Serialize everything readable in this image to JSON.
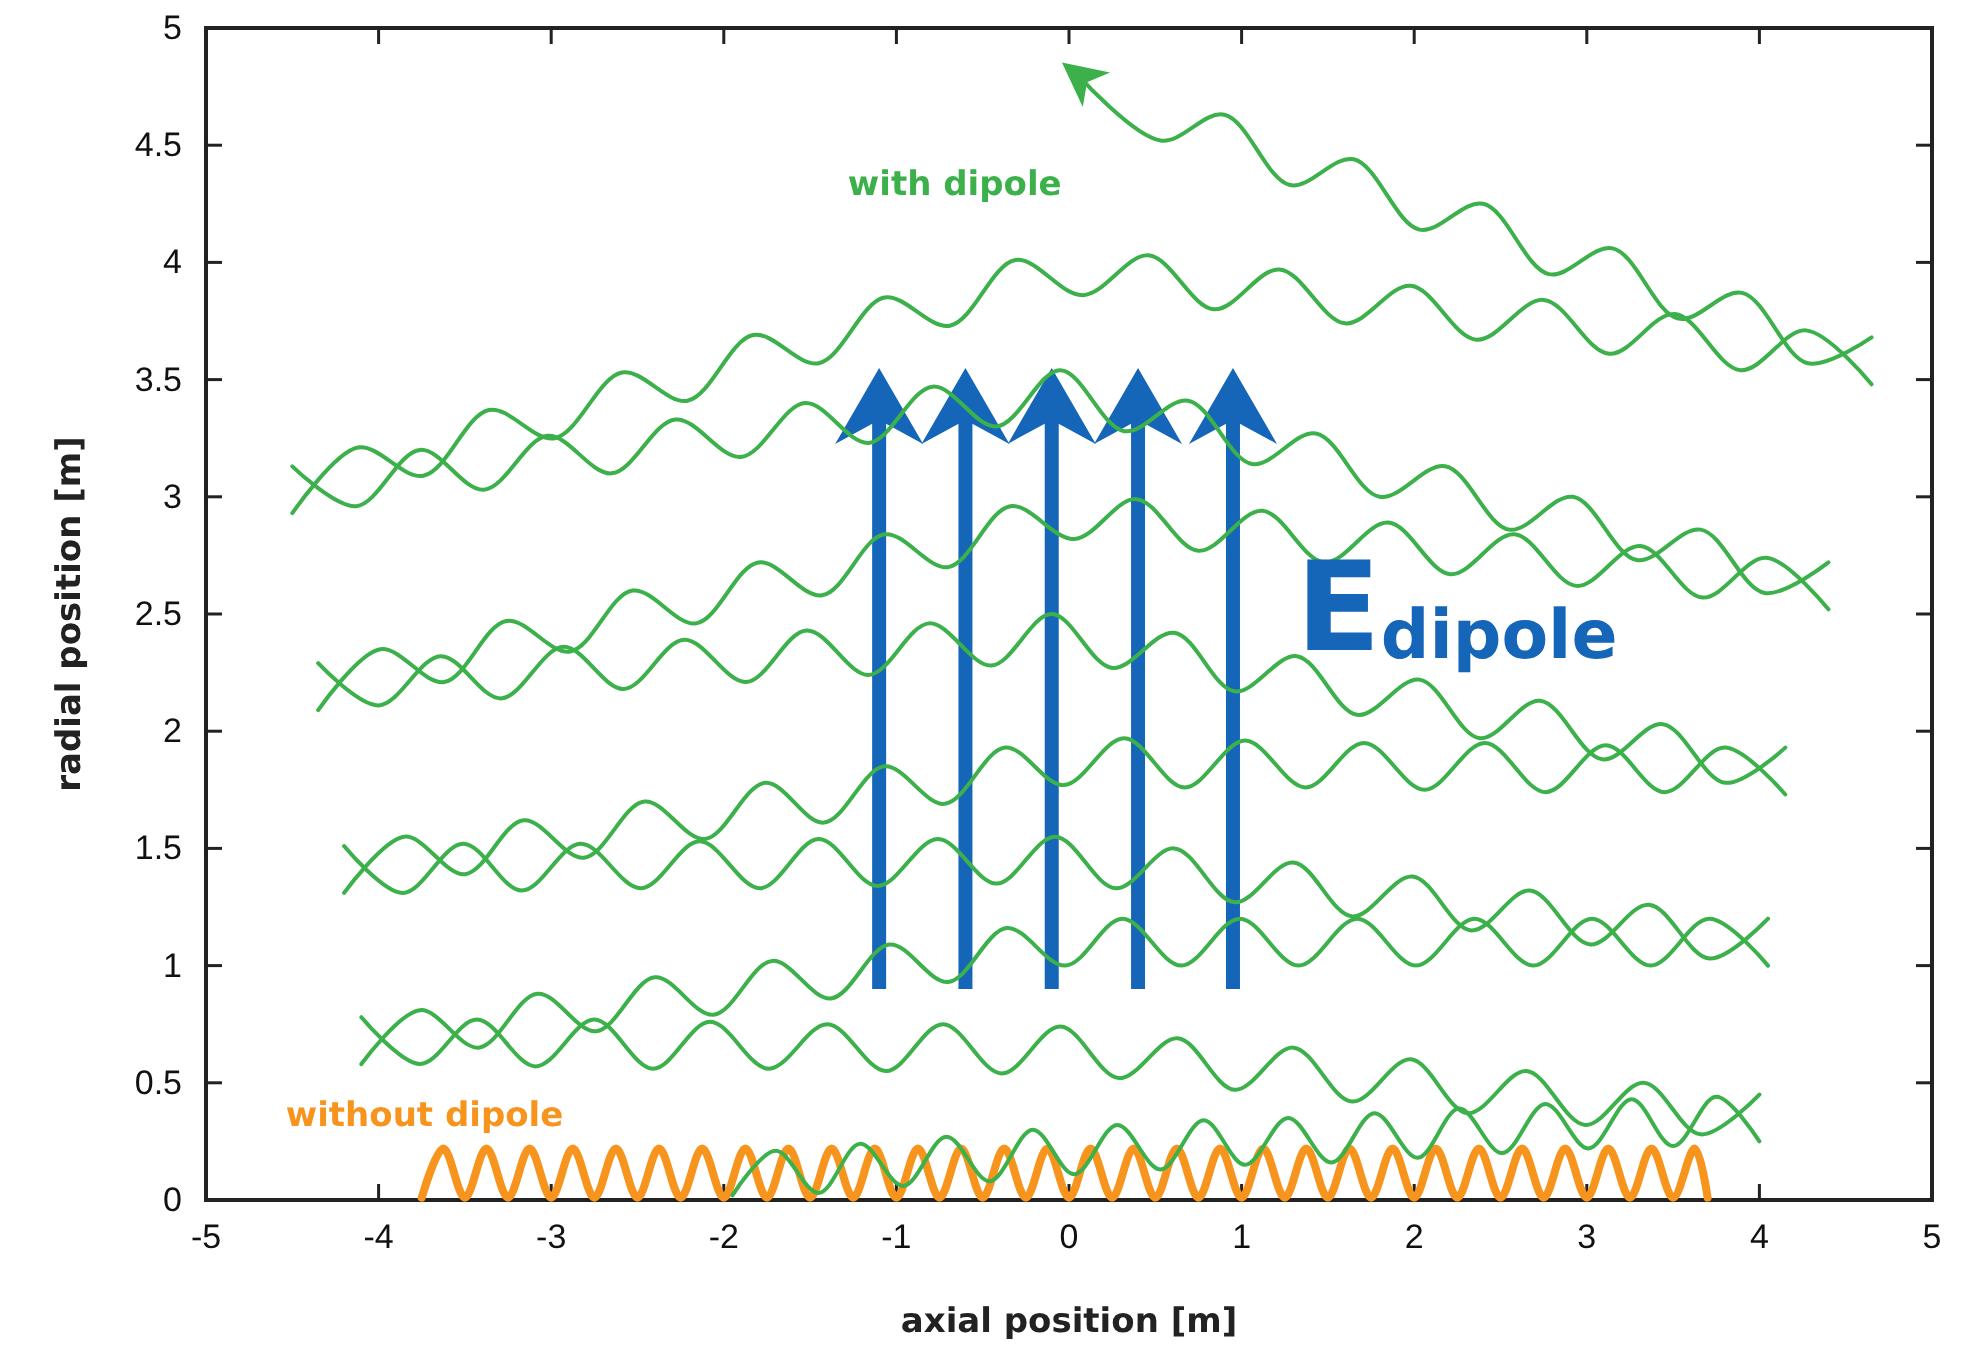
{
  "chart_data": {
    "type": "line",
    "xlabel": "axial position [m]",
    "ylabel": "radial position [m]",
    "xlim": [
      -5,
      5
    ],
    "ylim": [
      0,
      5
    ],
    "xticks": [
      -5,
      -4,
      -3,
      -2,
      -1,
      0,
      1,
      2,
      3,
      4,
      5
    ],
    "yticks": [
      0,
      0.5,
      1,
      1.5,
      2,
      2.5,
      3,
      3.5,
      4,
      4.5,
      5
    ],
    "annotations": [
      "E$_{dipole}$"
    ],
    "series": [
      {
        "name": "without dipole",
        "color": "#f7941d",
        "x": [
          -3.75,
          -3.625,
          -3.5,
          -3.375,
          -3.25,
          -3.125,
          -3,
          -2.875,
          -2.75,
          -2.625,
          -2.5,
          -2.375,
          -2.25,
          -2.125,
          -2,
          -1.875,
          -1.75,
          -1.625,
          -1.5,
          -1.375,
          -1.25,
          -1.125,
          -1,
          -0.875,
          -0.75,
          -0.625,
          -0.5,
          -0.375,
          -0.25,
          -0.125,
          0,
          0.125,
          0.25,
          0.375,
          0.5,
          0.625,
          0.75,
          0.875,
          1,
          1.125,
          1.25,
          1.375,
          1.5,
          1.625,
          1.75,
          1.875,
          2,
          2.125,
          2.25,
          2.375,
          2.5,
          2.625,
          2.75,
          2.875,
          3,
          3.125,
          3.25,
          3.375,
          3.5,
          3.625,
          3.7
        ],
        "values": [
          0.01,
          0.22,
          0.01,
          0.22,
          0.01,
          0.22,
          0.01,
          0.22,
          0.01,
          0.22,
          0.01,
          0.22,
          0.01,
          0.22,
          0.01,
          0.22,
          0.01,
          0.22,
          0.01,
          0.22,
          0.01,
          0.22,
          0.01,
          0.22,
          0.01,
          0.22,
          0.01,
          0.22,
          0.01,
          0.22,
          0.01,
          0.22,
          0.01,
          0.22,
          0.01,
          0.22,
          0.01,
          0.22,
          0.01,
          0.22,
          0.01,
          0.22,
          0.01,
          0.22,
          0.01,
          0.22,
          0.01,
          0.22,
          0.01,
          0.22,
          0.01,
          0.22,
          0.01,
          0.22,
          0.01,
          0.22,
          0.01,
          0.22,
          0.01,
          0.22,
          0.01
        ]
      },
      {
        "color": "#3cb04a",
        "x": [
          -1.95,
          -1.7,
          -1.45,
          -1.21,
          -0.96,
          -0.71,
          -0.46,
          -0.21,
          0.03,
          0.28,
          0.53,
          0.78,
          1.02,
          1.27,
          1.52,
          1.77,
          2.02,
          2.26,
          2.51,
          2.76,
          3.01,
          3.26,
          3.5,
          3.75,
          4.0
        ],
        "values": [
          0.02,
          0.21,
          0.03,
          0.24,
          0.06,
          0.27,
          0.08,
          0.3,
          0.11,
          0.32,
          0.13,
          0.34,
          0.15,
          0.35,
          0.16,
          0.37,
          0.18,
          0.39,
          0.2,
          0.41,
          0.22,
          0.43,
          0.23,
          0.44,
          0.25
        ]
      },
      {
        "color": "#3cb04a",
        "x": [
          4.0,
          3.66,
          3.33,
          2.99,
          2.65,
          2.31,
          1.98,
          1.64,
          1.3,
          0.96,
          0.63,
          0.29,
          -0.05,
          -0.39,
          -0.73,
          -1.06,
          -1.4,
          -1.74,
          -2.08,
          -2.41,
          -2.75,
          -3.09,
          -3.43,
          -3.76,
          -4.1
        ],
        "values": [
          0.45,
          0.28,
          0.5,
          0.32,
          0.55,
          0.37,
          0.6,
          0.42,
          0.65,
          0.47,
          0.69,
          0.52,
          0.74,
          0.54,
          0.75,
          0.55,
          0.75,
          0.56,
          0.76,
          0.56,
          0.77,
          0.57,
          0.77,
          0.58,
          0.78
        ]
      },
      {
        "color": "#3cb04a",
        "x": [
          -4.1,
          -3.76,
          -3.42,
          -3.08,
          -2.74,
          -2.4,
          -2.06,
          -1.72,
          -1.38,
          -1.04,
          -0.7,
          -0.36,
          -0.02,
          0.31,
          0.65,
          0.99,
          1.33,
          1.67,
          2.01,
          2.35,
          2.69,
          3.03,
          3.37,
          3.71,
          4.05
        ],
        "values": [
          0.58,
          0.81,
          0.65,
          0.88,
          0.72,
          0.95,
          0.79,
          1.02,
          0.86,
          1.09,
          0.93,
          1.16,
          1.0,
          1.2,
          1.0,
          1.2,
          1.0,
          1.2,
          1.0,
          1.2,
          1.0,
          1.2,
          1.0,
          1.2,
          1.0
        ]
      },
      {
        "color": "#3cb04a",
        "x": [
          4.05,
          3.71,
          3.36,
          3.02,
          2.67,
          2.33,
          1.99,
          1.64,
          1.3,
          0.96,
          0.61,
          0.27,
          -0.08,
          -0.42,
          -0.76,
          -1.11,
          -1.45,
          -1.79,
          -2.14,
          -2.48,
          -2.83,
          -3.17,
          -3.51,
          -3.86,
          -4.2
        ],
        "values": [
          1.2,
          1.03,
          1.26,
          1.09,
          1.32,
          1.15,
          1.38,
          1.21,
          1.44,
          1.27,
          1.5,
          1.33,
          1.55,
          1.35,
          1.54,
          1.34,
          1.54,
          1.33,
          1.53,
          1.33,
          1.52,
          1.32,
          1.52,
          1.31,
          1.51
        ]
      },
      {
        "color": "#3cb04a",
        "x": [
          -4.2,
          -3.85,
          -3.5,
          -3.16,
          -2.81,
          -2.46,
          -2.11,
          -1.76,
          -1.42,
          -1.07,
          -0.72,
          -0.37,
          -0.03,
          0.32,
          0.67,
          1.02,
          1.37,
          1.71,
          2.06,
          2.41,
          2.76,
          3.11,
          3.45,
          3.8,
          4.15
        ],
        "values": [
          1.31,
          1.55,
          1.39,
          1.62,
          1.46,
          1.7,
          1.54,
          1.78,
          1.61,
          1.85,
          1.69,
          1.93,
          1.77,
          1.97,
          1.76,
          1.96,
          1.76,
          1.95,
          1.75,
          1.95,
          1.74,
          1.94,
          1.74,
          1.93,
          1.73
        ]
      },
      {
        "color": "#3cb04a",
        "x": [
          4.15,
          3.8,
          3.44,
          3.09,
          2.73,
          2.38,
          2.03,
          1.67,
          1.32,
          0.96,
          0.61,
          0.25,
          -0.1,
          -0.45,
          -0.81,
          -1.16,
          -1.52,
          -1.87,
          -2.23,
          -2.58,
          -2.93,
          -3.29,
          -3.64,
          -4.0,
          -4.35
        ],
        "values": [
          1.93,
          1.78,
          2.03,
          1.88,
          2.13,
          1.97,
          2.22,
          2.07,
          2.32,
          2.17,
          2.42,
          2.27,
          2.5,
          2.28,
          2.46,
          2.24,
          2.43,
          2.21,
          2.39,
          2.18,
          2.36,
          2.14,
          2.32,
          2.11,
          2.29
        ]
      },
      {
        "color": "#3cb04a",
        "x": [
          -4.35,
          -3.99,
          -3.62,
          -3.26,
          -2.89,
          -2.53,
          -2.16,
          -1.8,
          -1.43,
          -1.07,
          -0.7,
          -0.34,
          0.03,
          0.39,
          0.75,
          1.12,
          1.48,
          1.85,
          2.21,
          2.58,
          2.94,
          3.31,
          3.67,
          4.04,
          4.4
        ],
        "values": [
          2.09,
          2.35,
          2.21,
          2.47,
          2.34,
          2.6,
          2.46,
          2.72,
          2.58,
          2.84,
          2.7,
          2.96,
          2.82,
          2.99,
          2.77,
          2.94,
          2.72,
          2.89,
          2.67,
          2.84,
          2.62,
          2.79,
          2.57,
          2.74,
          2.52
        ]
      },
      {
        "color": "#3cb04a",
        "x": [
          4.4,
          4.03,
          3.66,
          3.29,
          2.92,
          2.55,
          2.18,
          1.8,
          1.43,
          1.06,
          0.69,
          0.32,
          -0.05,
          -0.42,
          -0.79,
          -1.16,
          -1.53,
          -1.9,
          -2.28,
          -2.65,
          -3.02,
          -3.39,
          -3.76,
          -4.13,
          -4.5
        ],
        "values": [
          2.72,
          2.59,
          2.86,
          2.73,
          3.0,
          2.86,
          3.13,
          3.0,
          3.27,
          3.14,
          3.41,
          3.28,
          3.54,
          3.3,
          3.47,
          3.23,
          3.4,
          3.17,
          3.33,
          3.1,
          3.26,
          3.03,
          3.2,
          2.96,
          3.13
        ]
      },
      {
        "color": "#3cb04a",
        "x": [
          -4.5,
          -4.12,
          -3.74,
          -3.36,
          -2.98,
          -2.59,
          -2.21,
          -1.83,
          -1.45,
          -1.07,
          -0.69,
          -0.31,
          0.08,
          0.46,
          0.84,
          1.22,
          1.6,
          1.98,
          2.36,
          2.75,
          3.13,
          3.51,
          3.89,
          4.27,
          4.65
        ],
        "values": [
          2.93,
          3.21,
          3.09,
          3.37,
          3.25,
          3.53,
          3.41,
          3.69,
          3.57,
          3.85,
          3.73,
          4.01,
          3.86,
          4.03,
          3.8,
          3.97,
          3.74,
          3.9,
          3.67,
          3.84,
          3.61,
          3.78,
          3.54,
          3.71,
          3.48
        ]
      },
      {
        "name": "with dipole",
        "color": "#3cb04a",
        "x": [
          4.65,
          4.28,
          3.9,
          3.53,
          3.15,
          2.78,
          2.4,
          2.03,
          1.65,
          1.28,
          0.9,
          0.53,
          0.05
        ],
        "values": [
          3.68,
          3.57,
          3.87,
          3.76,
          4.06,
          3.95,
          4.25,
          4.14,
          4.44,
          4.33,
          4.63,
          4.52,
          4.8
        ]
      }
    ]
  }
}
